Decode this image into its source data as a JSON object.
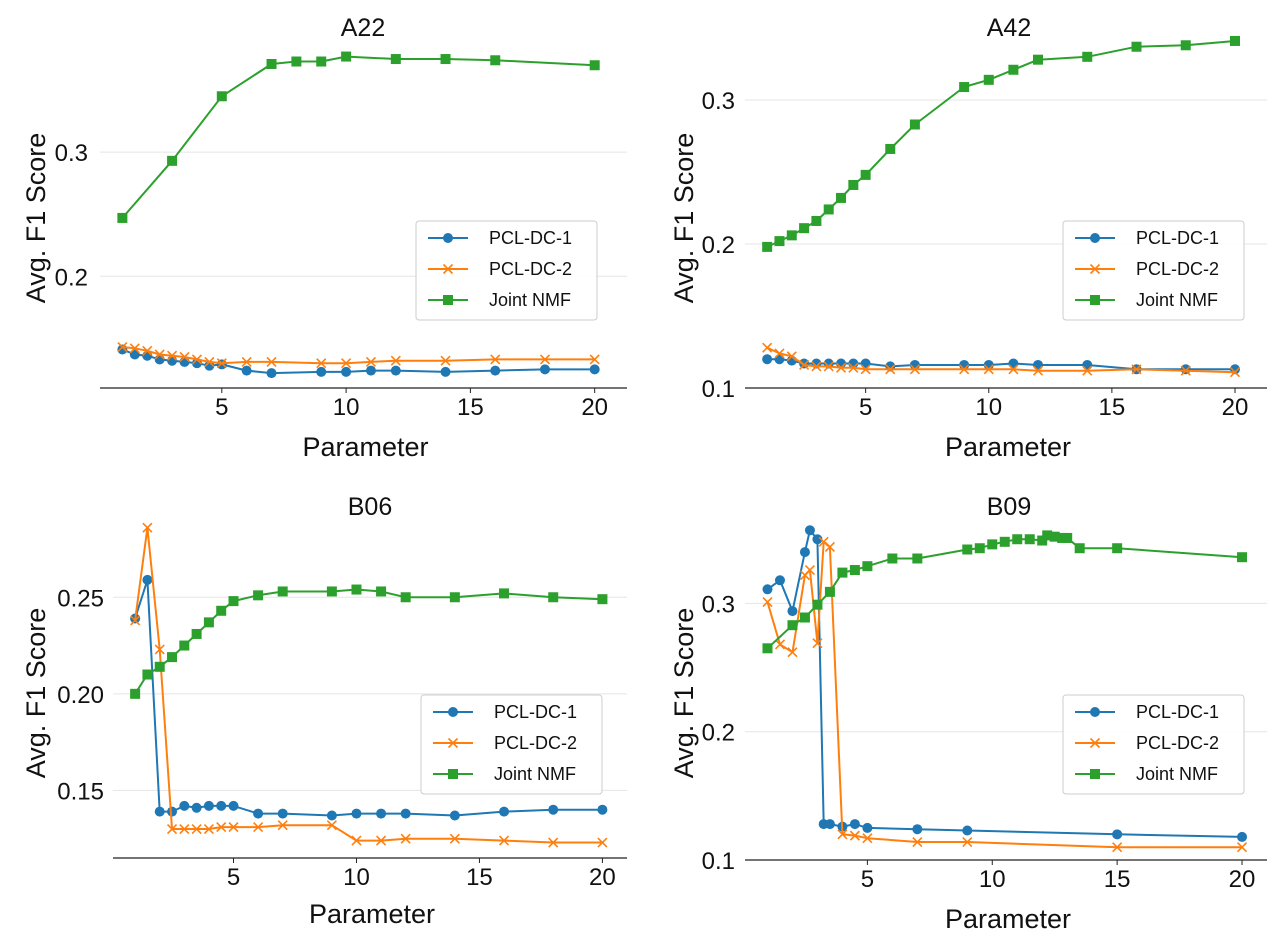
{
  "chart_data": [
    {
      "type": "line",
      "title": "A22",
      "xlabel": "Parameter",
      "ylabel": "Avg. F1 Score",
      "xlim": [
        0.1,
        21.3
      ],
      "ylim": [
        0.11,
        0.4
      ],
      "xticks": [
        5,
        10,
        15,
        20
      ],
      "xtick_labels": [
        "5",
        "10",
        "15",
        "20"
      ],
      "yticks": [
        0.2,
        0.3
      ],
      "ytick_labels": [
        "0.2",
        "0.3"
      ],
      "grid": "horizontal",
      "legend": "center-right",
      "series": [
        {
          "name": "PCL-DC-1",
          "color": "#1f77b4",
          "marker": "circle",
          "x": [
            1,
            1.5,
            2,
            2.5,
            3,
            3.5,
            4,
            4.5,
            5,
            6,
            7,
            9,
            10,
            11,
            12,
            14,
            16,
            18,
            20
          ],
          "y": [
            0.141,
            0.137,
            0.136,
            0.133,
            0.132,
            0.131,
            0.13,
            0.128,
            0.129,
            0.124,
            0.122,
            0.123,
            0.123,
            0.124,
            0.124,
            0.123,
            0.124,
            0.125,
            0.125
          ]
        },
        {
          "name": "PCL-DC-2",
          "color": "#ff7f0e",
          "marker": "x",
          "x": [
            1,
            1.5,
            2,
            2.5,
            3,
            3.5,
            4,
            4.5,
            5,
            6,
            7,
            9,
            10,
            11,
            12,
            14,
            16,
            18,
            20
          ],
          "y": [
            0.143,
            0.142,
            0.14,
            0.137,
            0.136,
            0.135,
            0.133,
            0.131,
            0.13,
            0.131,
            0.131,
            0.13,
            0.13,
            0.131,
            0.132,
            0.132,
            0.133,
            0.133,
            0.133
          ]
        },
        {
          "name": "Joint NMF",
          "color": "#2ca02c",
          "marker": "square",
          "x": [
            1,
            3,
            5,
            7,
            8,
            9,
            10,
            12,
            14,
            16,
            20
          ],
          "y": [
            0.247,
            0.293,
            0.345,
            0.371,
            0.373,
            0.373,
            0.377,
            0.375,
            0.375,
            0.374,
            0.37
          ]
        }
      ]
    },
    {
      "type": "line",
      "title": "A42",
      "xlabel": "Parameter",
      "ylabel": "Avg. F1 Score",
      "xlim": [
        0.1,
        21.3
      ],
      "ylim": [
        0.1,
        0.35
      ],
      "xticks": [
        5,
        10,
        15,
        20
      ],
      "xtick_labels": [
        "5",
        "10",
        "15",
        "20"
      ],
      "yticks": [
        0.1,
        0.2,
        0.3
      ],
      "ytick_labels": [
        "0.1",
        "0.2",
        "0.3"
      ],
      "grid": "horizontal",
      "legend": "center-right",
      "series": [
        {
          "name": "PCL-DC-1",
          "color": "#1f77b4",
          "marker": "circle",
          "x": [
            1,
            1.5,
            2,
            2.5,
            3,
            3.5,
            4,
            4.5,
            5,
            6,
            7,
            9,
            10,
            11,
            12,
            14,
            16,
            18,
            20
          ],
          "y": [
            0.12,
            0.12,
            0.119,
            0.117,
            0.117,
            0.117,
            0.117,
            0.117,
            0.117,
            0.115,
            0.116,
            0.116,
            0.116,
            0.117,
            0.116,
            0.116,
            0.113,
            0.113,
            0.113
          ]
        },
        {
          "name": "PCL-DC-2",
          "color": "#ff7f0e",
          "marker": "x",
          "x": [
            1,
            1.5,
            2,
            2.5,
            3,
            3.5,
            4,
            4.5,
            5,
            6,
            7,
            9,
            10,
            11,
            12,
            14,
            16,
            18,
            20
          ],
          "y": [
            0.128,
            0.124,
            0.122,
            0.116,
            0.115,
            0.115,
            0.114,
            0.114,
            0.113,
            0.113,
            0.113,
            0.113,
            0.113,
            0.113,
            0.112,
            0.112,
            0.113,
            0.112,
            0.111
          ]
        },
        {
          "name": "Joint NMF",
          "color": "#2ca02c",
          "marker": "square",
          "x": [
            1,
            1.5,
            2,
            2.5,
            3,
            3.5,
            4,
            4.5,
            5,
            6,
            7,
            9,
            10,
            11,
            12,
            14,
            16,
            18,
            20
          ],
          "y": [
            0.198,
            0.202,
            0.206,
            0.211,
            0.216,
            0.224,
            0.232,
            0.241,
            0.248,
            0.266,
            0.283,
            0.309,
            0.314,
            0.321,
            0.328,
            0.33,
            0.337,
            0.338,
            0.341
          ]
        }
      ]
    },
    {
      "type": "line",
      "title": "B06",
      "xlabel": "Parameter",
      "ylabel": "Avg. F1 Score",
      "xlim": [
        0.1,
        21.0
      ],
      "ylim": [
        0.115,
        0.29
      ],
      "xticks": [
        5,
        10,
        15,
        20
      ],
      "xtick_labels": [
        "5",
        "10",
        "15",
        "20"
      ],
      "yticks": [
        0.15,
        0.2,
        0.25
      ],
      "ytick_labels": [
        "0.15",
        "0.20",
        "0.25"
      ],
      "grid": "horizontal",
      "legend": "center-right",
      "series": [
        {
          "name": "PCL-DC-1",
          "color": "#1f77b4",
          "marker": "circle",
          "x": [
            1,
            1.5,
            2,
            2.5,
            3,
            3.5,
            4,
            4.5,
            5,
            6,
            7,
            9,
            10,
            11,
            12,
            14,
            16,
            18,
            20
          ],
          "y": [
            0.239,
            0.259,
            0.139,
            0.139,
            0.142,
            0.141,
            0.142,
            0.142,
            0.142,
            0.138,
            0.138,
            0.137,
            0.138,
            0.138,
            0.138,
            0.137,
            0.139,
            0.14,
            0.14
          ]
        },
        {
          "name": "PCL-DC-2",
          "color": "#ff7f0e",
          "marker": "x",
          "x": [
            1,
            1.5,
            2,
            2.5,
            3,
            3.5,
            4,
            4.5,
            5,
            6,
            7,
            9,
            10,
            11,
            12,
            14,
            16,
            18,
            20
          ],
          "y": [
            0.238,
            0.286,
            0.223,
            0.13,
            0.13,
            0.13,
            0.13,
            0.131,
            0.131,
            0.131,
            0.132,
            0.132,
            0.124,
            0.124,
            0.125,
            0.125,
            0.124,
            0.123,
            0.123
          ]
        },
        {
          "name": "Joint NMF",
          "color": "#2ca02c",
          "marker": "square",
          "x": [
            1,
            1.5,
            2,
            2.5,
            3,
            3.5,
            4,
            4.5,
            5,
            6,
            7,
            9,
            10,
            11,
            12,
            14,
            16,
            18,
            20
          ],
          "y": [
            0.2,
            0.21,
            0.214,
            0.219,
            0.225,
            0.231,
            0.237,
            0.243,
            0.248,
            0.251,
            0.253,
            0.253,
            0.254,
            0.253,
            0.25,
            0.25,
            0.252,
            0.25,
            0.249
          ]
        }
      ]
    },
    {
      "type": "line",
      "title": "B09",
      "xlabel": "Parameter",
      "ylabel": "Avg. F1 Score",
      "xlim": [
        0.1,
        21.0
      ],
      "ylim": [
        0.1,
        0.365
      ],
      "xticks": [
        5,
        10,
        15,
        20
      ],
      "xtick_labels": [
        "5",
        "10",
        "15",
        "20"
      ],
      "yticks": [
        0.1,
        0.2,
        0.3
      ],
      "ytick_labels": [
        "0.1",
        "0.2",
        "0.3"
      ],
      "grid": "horizontal",
      "legend": "center-right",
      "series": [
        {
          "name": "PCL-DC-1",
          "color": "#1f77b4",
          "marker": "circle",
          "x": [
            1,
            1.5,
            2,
            2.5,
            2.7,
            3,
            3.25,
            3.5,
            4,
            4.5,
            5,
            7,
            9,
            15,
            20
          ],
          "y": [
            0.311,
            0.318,
            0.294,
            0.34,
            0.357,
            0.35,
            0.128,
            0.128,
            0.126,
            0.128,
            0.125,
            0.124,
            0.123,
            0.12,
            0.118
          ]
        },
        {
          "name": "PCL-DC-2",
          "color": "#ff7f0e",
          "marker": "x",
          "x": [
            1,
            1.5,
            2,
            2.5,
            2.7,
            3,
            3.25,
            3.5,
            4,
            4.5,
            5,
            7,
            9,
            15,
            20
          ],
          "y": [
            0.301,
            0.268,
            0.262,
            0.322,
            0.326,
            0.269,
            0.348,
            0.344,
            0.12,
            0.119,
            0.117,
            0.114,
            0.114,
            0.11,
            0.11
          ]
        },
        {
          "name": "Joint NMF",
          "color": "#2ca02c",
          "marker": "square",
          "x": [
            1,
            2,
            2.5,
            3,
            3.5,
            4,
            4.5,
            5,
            6,
            7,
            9,
            9.5,
            10,
            10.5,
            11,
            11.5,
            12,
            12.2,
            12.5,
            12.8,
            13,
            13.5,
            15,
            20
          ],
          "y": [
            0.265,
            0.283,
            0.289,
            0.299,
            0.309,
            0.324,
            0.326,
            0.329,
            0.335,
            0.335,
            0.342,
            0.343,
            0.346,
            0.348,
            0.35,
            0.35,
            0.349,
            0.353,
            0.352,
            0.351,
            0.351,
            0.343,
            0.343,
            0.336
          ]
        }
      ]
    }
  ]
}
